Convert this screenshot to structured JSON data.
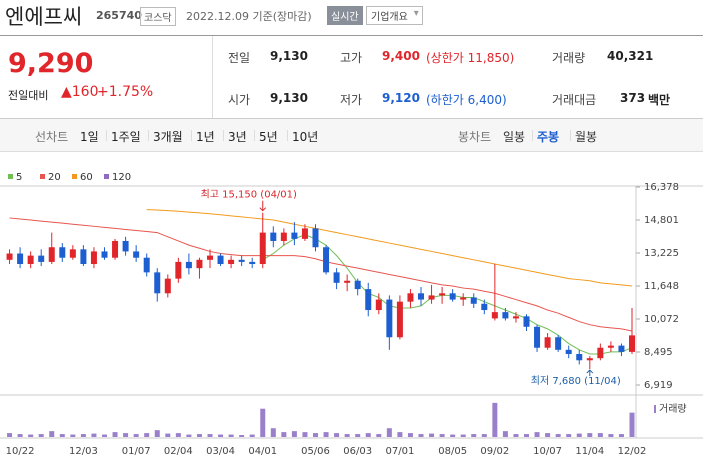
{
  "header": {
    "name": "엔에프씨",
    "code": "265740",
    "market": "코스닥",
    "date": "2022.12.09 기준(장마감)",
    "realtime": "실시간",
    "company": "기업개요"
  },
  "price": {
    "value": "9,290",
    "change_label": "전일대비",
    "change": "▲160",
    "change_rate": "+1.75%"
  },
  "info": [
    {
      "label": "전일",
      "value": "9,130"
    },
    {
      "label": "고가",
      "value": "9,400",
      "note": "(상한가 11,850)"
    },
    {
      "label": "거래량",
      "value": "40,321"
    },
    {
      "label": "시가",
      "value": "9,130"
    },
    {
      "label": "저가",
      "value": "9,120",
      "note": "(하한가 6,400)"
    },
    {
      "label": "거래대금",
      "value": "373",
      "unit": "백만"
    }
  ],
  "tabs": {
    "line_label": "선차트",
    "line": [
      "1일",
      "1주일",
      "3개월",
      "1년",
      "3년",
      "5년",
      "10년"
    ],
    "candle_label": "봉차트",
    "candle": [
      "일봉",
      "주봉",
      "월봉"
    ],
    "active": "주봉"
  },
  "chart_data": {
    "type": "candlestick",
    "categories": [
      null,
      "10/22",
      null,
      null,
      null,
      null,
      null,
      "12/03",
      null,
      null,
      null,
      null,
      "01/07",
      null,
      null,
      null,
      "02/04",
      null,
      null,
      null,
      "03/04",
      null,
      null,
      null,
      "04/01",
      null,
      null,
      null,
      null,
      "05/06",
      null,
      null,
      null,
      "06/03",
      null,
      null,
      null,
      "07/01",
      null,
      null,
      null,
      null,
      "08/05",
      null,
      null,
      null,
      "09/02",
      null,
      null,
      null,
      null,
      "10/07",
      null,
      null,
      null,
      "11/04",
      null,
      null,
      null,
      "12/02"
    ],
    "candles": [
      [
        12900,
        13400,
        12700,
        13200
      ],
      [
        13200,
        13500,
        12500,
        12700
      ],
      [
        12700,
        13300,
        12500,
        13100
      ],
      [
        13100,
        13400,
        12600,
        12800
      ],
      [
        12800,
        14200,
        12700,
        13500
      ],
      [
        13500,
        13700,
        12800,
        13000
      ],
      [
        13000,
        13600,
        12900,
        13400
      ],
      [
        13400,
        13600,
        12600,
        12700
      ],
      [
        12700,
        13500,
        12500,
        13300
      ],
      [
        13300,
        13500,
        12900,
        13000
      ],
      [
        13000,
        13900,
        12900,
        13800
      ],
      [
        13800,
        14000,
        13100,
        13300
      ],
      [
        13300,
        13600,
        12800,
        13000
      ],
      [
        13000,
        13200,
        12100,
        12300
      ],
      [
        12300,
        12500,
        10900,
        11300
      ],
      [
        11300,
        12200,
        11100,
        12000
      ],
      [
        12000,
        13000,
        11800,
        12800
      ],
      [
        12800,
        13200,
        12200,
        12500
      ],
      [
        12500,
        13000,
        12000,
        12900
      ],
      [
        12900,
        13400,
        12500,
        13100
      ],
      [
        13100,
        13200,
        12600,
        12700
      ],
      [
        12700,
        13100,
        12500,
        12900
      ],
      [
        12900,
        13100,
        12600,
        12800
      ],
      [
        12800,
        13000,
        12500,
        12700
      ],
      [
        12700,
        15150,
        12500,
        14200
      ],
      [
        14200,
        14500,
        13500,
        13800
      ],
      [
        13800,
        14400,
        13600,
        14200
      ],
      [
        14200,
        14700,
        13600,
        13900
      ],
      [
        13900,
        14600,
        13800,
        14400
      ],
      [
        14400,
        14600,
        13300,
        13500
      ],
      [
        13500,
        13600,
        12200,
        12300
      ],
      [
        12300,
        12500,
        11500,
        11800
      ],
      [
        11800,
        12200,
        11400,
        11900
      ],
      [
        11900,
        12000,
        11200,
        11500
      ],
      [
        11500,
        11800,
        10200,
        10500
      ],
      [
        10500,
        11300,
        10300,
        11000
      ],
      [
        11000,
        11200,
        8600,
        9200
      ],
      [
        9200,
        11200,
        9100,
        10900
      ],
      [
        10900,
        11500,
        10600,
        11300
      ],
      [
        11300,
        11600,
        10700,
        11000
      ],
      [
        11000,
        11700,
        10800,
        11200
      ],
      [
        11200,
        11600,
        10800,
        11300
      ],
      [
        11300,
        11500,
        10900,
        11000
      ],
      [
        11000,
        11300,
        10700,
        11100
      ],
      [
        11100,
        11300,
        10600,
        10800
      ],
      [
        10800,
        11000,
        10300,
        10500
      ],
      [
        10100,
        12700,
        10000,
        10400
      ],
      [
        10400,
        10600,
        10000,
        10100
      ],
      [
        10100,
        10400,
        9900,
        10200
      ],
      [
        10200,
        10300,
        9500,
        9700
      ],
      [
        9700,
        9800,
        8500,
        8700
      ],
      [
        8700,
        9400,
        8600,
        9200
      ],
      [
        9200,
        9300,
        8500,
        8600
      ],
      [
        8600,
        8800,
        8200,
        8400
      ],
      [
        8400,
        8600,
        7900,
        8100
      ],
      [
        8100,
        8300,
        7680,
        8200
      ],
      [
        8200,
        8900,
        8100,
        8700
      ],
      [
        8700,
        9000,
        8500,
        8800
      ],
      [
        8800,
        8900,
        8300,
        8500
      ],
      [
        8500,
        10600,
        8400,
        9290
      ]
    ],
    "up_color": "#e0252b",
    "down_color": "#1d5fd0",
    "moving_averages": [
      {
        "name": "5",
        "color": "#6fbf55",
        "values": [
          null,
          null,
          null,
          null,
          null,
          null,
          null,
          null,
          null,
          null,
          null,
          null,
          null,
          null,
          null,
          null,
          null,
          null,
          null,
          null,
          null,
          null,
          null,
          null,
          12900,
          13200,
          13600,
          13900,
          14100,
          13900,
          13600,
          13100,
          12500,
          11800,
          11300,
          11100,
          10700,
          10600,
          10600,
          10700,
          11100,
          11200,
          11200,
          11100,
          11100,
          10900,
          10700,
          10500,
          10300,
          10100,
          9800,
          9600,
          9300,
          8900,
          8600,
          8400,
          8400,
          8500,
          8500,
          8700
        ]
      },
      {
        "name": "20",
        "color": "#e8554e",
        "values": [
          14900,
          14850,
          14800,
          14750,
          14700,
          14650,
          14600,
          14550,
          14500,
          14450,
          14400,
          14350,
          14300,
          14250,
          14200,
          14000,
          13800,
          13600,
          13450,
          13300,
          13200,
          13150,
          13100,
          13100,
          13100,
          13100,
          13100,
          13100,
          13050,
          12950,
          12800,
          12700,
          12600,
          12500,
          12400,
          12300,
          12200,
          12100,
          12000,
          11900,
          11800,
          11700,
          11650,
          11550,
          11500,
          11400,
          11300,
          11150,
          11000,
          10850,
          10700,
          10500,
          10350,
          10150,
          9950,
          9800,
          9700,
          9650,
          9600,
          9500
        ]
      },
      {
        "name": "60",
        "color": "#f39a1e",
        "values": [
          null,
          null,
          null,
          null,
          null,
          null,
          null,
          null,
          null,
          null,
          null,
          null,
          null,
          15300,
          15280,
          15250,
          15220,
          15180,
          15140,
          15100,
          15050,
          15000,
          14950,
          14900,
          14850,
          14800,
          14700,
          14600,
          14500,
          14400,
          14300,
          14200,
          14100,
          14000,
          13900,
          13800,
          13700,
          13600,
          13500,
          13400,
          13300,
          13200,
          13100,
          13000,
          12900,
          12800,
          12700,
          12600,
          12500,
          12400,
          12300,
          12200,
          12100,
          12000,
          11950,
          11900,
          11800,
          11750,
          11700,
          11650
        ]
      },
      {
        "name": "120",
        "color": "#8e6cc2"
      }
    ],
    "ylim": [
      6919,
      16378
    ],
    "yticks": [
      {
        "value": 16378,
        "label": "16,378"
      },
      {
        "value": 14801,
        "label": "14,801"
      },
      {
        "value": 13225,
        "label": "13,225"
      },
      {
        "value": 11648,
        "label": "11,648"
      },
      {
        "value": 10072,
        "label": "10,072"
      },
      {
        "value": 8495,
        "label": "8,495"
      },
      {
        "value": 6919,
        "label": "6,919"
      }
    ],
    "volume_label": "거래량",
    "volume_color": "#9a7fcb",
    "volume_ylim": [
      0,
      4000000
    ],
    "volume": [
      400000,
      300000,
      250000,
      300000,
      600000,
      300000,
      250000,
      300000,
      350000,
      250000,
      500000,
      400000,
      300000,
      400000,
      700000,
      350000,
      400000,
      250000,
      300000,
      300000,
      250000,
      250000,
      200000,
      250000,
      2900000,
      900000,
      500000,
      600000,
      500000,
      400000,
      500000,
      400000,
      300000,
      300000,
      400000,
      300000,
      900000,
      500000,
      400000,
      300000,
      350000,
      300000,
      250000,
      250000,
      300000,
      300000,
      3500000,
      600000,
      300000,
      300000,
      500000,
      400000,
      300000,
      300000,
      350000,
      400000,
      400000,
      300000,
      300000,
      2500000
    ],
    "annotations": [
      {
        "text": "최고 15,150 (04/01)",
        "index": 24,
        "value": 15150,
        "color": "#d8262c"
      },
      {
        "text": "최저 7,680 (11/04)",
        "index": 55,
        "value": 7680,
        "color": "#1d5fa8"
      }
    ]
  }
}
